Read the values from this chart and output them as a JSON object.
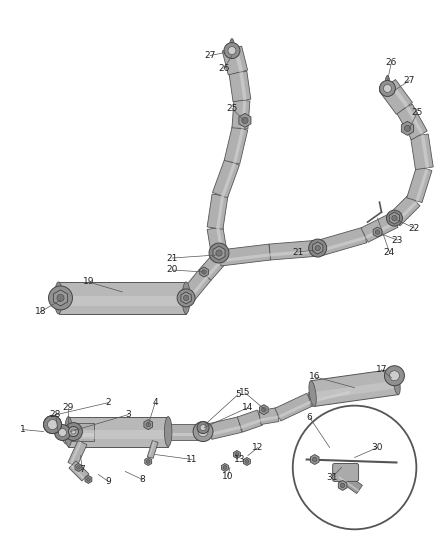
{
  "bg_color": "#ffffff",
  "line_color": "#555555",
  "fig_width": 4.38,
  "fig_height": 5.33,
  "dpi": 100,
  "pipe_color": "#b0b0b0",
  "pipe_edge": "#555555",
  "pipe_hi": "#d8d8d8",
  "dark_color": "#808080",
  "label_fs": 6.5,
  "label_color": "#222222"
}
